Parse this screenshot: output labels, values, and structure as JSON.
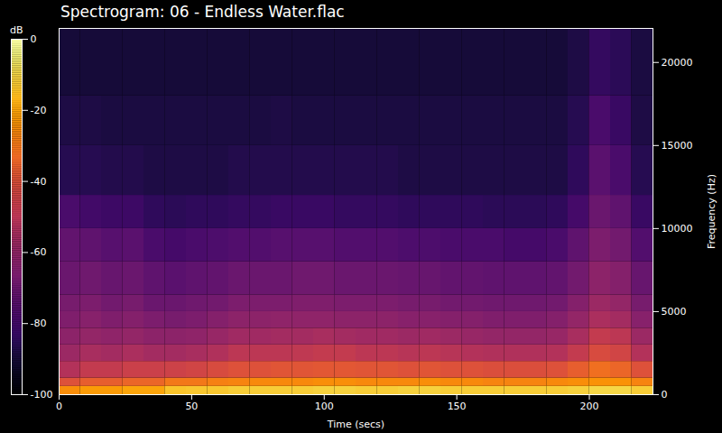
{
  "chart_data": {
    "type": "heatmap",
    "title": "Spectrogram: 06 - Endless Water.flac",
    "x_label": "Time (secs)",
    "y_label": "Frequency (Hz)",
    "xlim": [
      0,
      224
    ],
    "xticks": [
      0,
      50,
      100,
      150,
      200
    ],
    "ylim": [
      0,
      22050
    ],
    "yticks": [
      0,
      5000,
      10000,
      15000,
      20000
    ],
    "grid": false,
    "color": "inferno",
    "x_bins": [
      0,
      8,
      16,
      24,
      32,
      40,
      48,
      56,
      64,
      72,
      80,
      88,
      96,
      104,
      112,
      120,
      128,
      136,
      144,
      152,
      160,
      168,
      176,
      184,
      192,
      200,
      208,
      216,
      224
    ],
    "y_bins": [
      0,
      500,
      1000,
      2000,
      3000,
      4000,
      5000,
      6000,
      8000,
      10000,
      12000,
      15000,
      18000,
      22050
    ],
    "values": [
      [
        -25,
        -22,
        -22,
        -20,
        -20,
        -14,
        -13,
        -13,
        -12,
        -12,
        -12,
        -12,
        -11,
        -11,
        -12,
        -12,
        -11,
        -11,
        -12,
        -12,
        -12,
        -12,
        -12,
        -12,
        -11,
        -10,
        -10,
        -12
      ],
      [
        -40,
        -36,
        -36,
        -34,
        -34,
        -30,
        -30,
        -28,
        -27,
        -26,
        -26,
        -26,
        -25,
        -25,
        -26,
        -26,
        -26,
        -25,
        -26,
        -26,
        -27,
        -27,
        -27,
        -26,
        -25,
        -24,
        -24,
        -27
      ],
      [
        -52,
        -48,
        -48,
        -46,
        -46,
        -45,
        -44,
        -42,
        -40,
        -40,
        -39,
        -39,
        -38,
        -38,
        -39,
        -39,
        -40,
        -39,
        -40,
        -40,
        -41,
        -41,
        -41,
        -40,
        -36,
        -32,
        -34,
        -40
      ],
      [
        -58,
        -55,
        -56,
        -54,
        -56,
        -56,
        -55,
        -53,
        -50,
        -50,
        -50,
        -49,
        -48,
        -48,
        -50,
        -50,
        -51,
        -50,
        -51,
        -52,
        -53,
        -53,
        -53,
        -52,
        -48,
        -42,
        -44,
        -52
      ],
      [
        -62,
        -60,
        -61,
        -60,
        -62,
        -62,
        -61,
        -59,
        -57,
        -57,
        -56,
        -56,
        -55,
        -56,
        -57,
        -57,
        -58,
        -57,
        -58,
        -59,
        -60,
        -60,
        -60,
        -59,
        -55,
        -48,
        -50,
        -58
      ],
      [
        -65,
        -63,
        -65,
        -64,
        -66,
        -67,
        -66,
        -64,
        -62,
        -62,
        -61,
        -61,
        -61,
        -62,
        -62,
        -62,
        -63,
        -63,
        -64,
        -64,
        -65,
        -65,
        -65,
        -64,
        -60,
        -54,
        -56,
        -63
      ],
      [
        -67,
        -66,
        -68,
        -67,
        -70,
        -70,
        -69,
        -68,
        -66,
        -66,
        -66,
        -65,
        -65,
        -66,
        -66,
        -66,
        -67,
        -67,
        -68,
        -68,
        -69,
        -69,
        -69,
        -68,
        -64,
        -58,
        -60,
        -67
      ],
      [
        -70,
        -69,
        -71,
        -70,
        -73,
        -74,
        -73,
        -72,
        -70,
        -70,
        -70,
        -69,
        -69,
        -70,
        -70,
        -70,
        -71,
        -71,
        -72,
        -72,
        -73,
        -73,
        -73,
        -72,
        -68,
        -62,
        -64,
        -71
      ],
      [
        -72,
        -73,
        -75,
        -74,
        -78,
        -79,
        -78,
        -77,
        -76,
        -76,
        -75,
        -75,
        -75,
        -76,
        -76,
        -76,
        -77,
        -77,
        -78,
        -78,
        -78,
        -79,
        -79,
        -78,
        -73,
        -66,
        -68,
        -76
      ],
      [
        -78,
        -80,
        -81,
        -81,
        -84,
        -85,
        -84,
        -84,
        -83,
        -83,
        -82,
        -82,
        -82,
        -83,
        -83,
        -83,
        -84,
        -84,
        -84,
        -84,
        -85,
        -85,
        -85,
        -84,
        -79,
        -70,
        -73,
        -82
      ],
      [
        -86,
        -86,
        -87,
        -87,
        -88,
        -88,
        -88,
        -88,
        -87,
        -87,
        -87,
        -87,
        -87,
        -87,
        -87,
        -87,
        -88,
        -88,
        -88,
        -88,
        -88,
        -88,
        -88,
        -88,
        -84,
        -74,
        -78,
        -86
      ],
      [
        -88,
        -88,
        -89,
        -89,
        -89,
        -89,
        -89,
        -89,
        -89,
        -89,
        -88,
        -89,
        -89,
        -89,
        -89,
        -89,
        -89,
        -89,
        -89,
        -89,
        -89,
        -89,
        -89,
        -89,
        -86,
        -78,
        -82,
        -88
      ],
      [
        -90,
        -90,
        -90,
        -90,
        -90,
        -90,
        -90,
        -90,
        -90,
        -90,
        -90,
        -90,
        -90,
        -90,
        -90,
        -90,
        -90,
        -90,
        -90,
        -90,
        -90,
        -90,
        -90,
        -90,
        -88,
        -83,
        -85,
        -89
      ]
    ],
    "colorbar": {
      "label": "dB",
      "range": [
        -100,
        0
      ],
      "ticks": [
        0,
        -20,
        -40,
        -60,
        -80,
        -100
      ]
    }
  }
}
